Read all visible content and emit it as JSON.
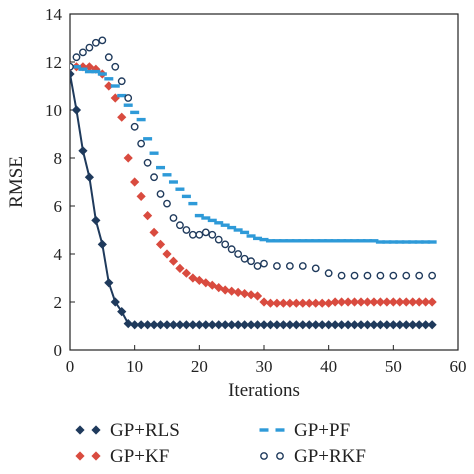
{
  "chart_data": {
    "type": "line",
    "xlabel": "Iterations",
    "ylabel": "RMSE",
    "xlim": [
      0,
      60
    ],
    "ylim": [
      0,
      14
    ],
    "xticks": [
      0,
      10,
      20,
      30,
      40,
      50,
      60
    ],
    "yticks": [
      0,
      2,
      4,
      6,
      8,
      10,
      12,
      14
    ],
    "grid": false,
    "legend_position": "bottom",
    "series": [
      {
        "name": "GP+RLS",
        "color": "#1f3a5c",
        "marker": "diamond-filled",
        "x": [
          0,
          1,
          2,
          3,
          4,
          5,
          6,
          7,
          8,
          9,
          10,
          11,
          12,
          13,
          14,
          15,
          16,
          17,
          18,
          19,
          20,
          21,
          22,
          23,
          24,
          25,
          26,
          27,
          28,
          29,
          30,
          31,
          32,
          33,
          34,
          35,
          36,
          37,
          38,
          39,
          40,
          41,
          42,
          43,
          44,
          45,
          46,
          47,
          48,
          49,
          50,
          51,
          52,
          53,
          54,
          55,
          56
        ],
        "values": [
          11.5,
          10,
          8.3,
          7.2,
          5.4,
          4.4,
          2.8,
          2.0,
          1.6,
          1.1,
          1.05,
          1.05,
          1.05,
          1.05,
          1.05,
          1.05,
          1.05,
          1.05,
          1.05,
          1.05,
          1.05,
          1.05,
          1.05,
          1.05,
          1.05,
          1.05,
          1.05,
          1.05,
          1.05,
          1.05,
          1.05,
          1.05,
          1.05,
          1.05,
          1.05,
          1.05,
          1.05,
          1.05,
          1.05,
          1.05,
          1.05,
          1.05,
          1.05,
          1.05,
          1.05,
          1.05,
          1.05,
          1.05,
          1.05,
          1.05,
          1.05,
          1.05,
          1.05,
          1.05,
          1.05,
          1.05,
          1.05
        ]
      },
      {
        "name": "GP+KF",
        "color": "#d94b3f",
        "marker": "diamond-filled",
        "x": [
          0,
          1,
          2,
          3,
          4,
          5,
          6,
          7,
          8,
          9,
          10,
          11,
          12,
          13,
          14,
          15,
          16,
          17,
          18,
          19,
          20,
          21,
          22,
          23,
          24,
          25,
          26,
          27,
          28,
          29,
          30,
          31,
          32,
          33,
          34,
          35,
          36,
          37,
          38,
          39,
          40,
          41,
          42,
          43,
          44,
          45,
          46,
          47,
          48,
          49,
          50,
          51,
          52,
          53,
          54,
          55,
          56
        ],
        "values": [
          11.8,
          11.8,
          11.8,
          11.8,
          11.7,
          11.5,
          11.0,
          10.5,
          9.7,
          8.0,
          7.0,
          6.4,
          5.6,
          4.9,
          4.4,
          4.0,
          3.7,
          3.4,
          3.2,
          3.0,
          2.9,
          2.8,
          2.7,
          2.6,
          2.5,
          2.45,
          2.4,
          2.35,
          2.3,
          2.25,
          2.0,
          1.95,
          1.95,
          1.95,
          1.95,
          1.95,
          1.95,
          1.95,
          1.95,
          1.95,
          1.95,
          2.0,
          2.0,
          2.0,
          2.0,
          2.0,
          2.0,
          2.0,
          2.0,
          2.0,
          2.0,
          2.0,
          2.0,
          2.0,
          2.0,
          2.0,
          2.0
        ]
      },
      {
        "name": "GP+PF",
        "color": "#2e9ad8",
        "marker": "dash",
        "x": [
          0,
          1,
          2,
          3,
          4,
          5,
          6,
          7,
          8,
          9,
          10,
          11,
          12,
          13,
          14,
          15,
          16,
          17,
          18,
          19,
          20,
          21,
          22,
          23,
          24,
          25,
          26,
          27,
          28,
          29,
          30,
          31,
          32,
          33,
          34,
          35,
          36,
          37,
          38,
          39,
          40,
          41,
          42,
          43,
          44,
          45,
          46,
          47,
          48,
          49,
          50,
          51,
          52,
          53,
          54,
          55,
          56
        ],
        "values": [
          11.8,
          11.8,
          11.7,
          11.6,
          11.6,
          11.5,
          11.3,
          11.0,
          10.6,
          10.2,
          9.9,
          9.6,
          8.8,
          8.2,
          7.6,
          7.3,
          7.0,
          6.7,
          6.4,
          6.1,
          5.6,
          5.5,
          5.4,
          5.3,
          5.2,
          5.1,
          5.0,
          4.9,
          4.75,
          4.65,
          4.6,
          4.55,
          4.55,
          4.55,
          4.55,
          4.55,
          4.55,
          4.55,
          4.55,
          4.55,
          4.55,
          4.55,
          4.55,
          4.55,
          4.55,
          4.55,
          4.55,
          4.55,
          4.5,
          4.5,
          4.5,
          4.5,
          4.5,
          4.5,
          4.5,
          4.5,
          4.5
        ]
      },
      {
        "name": "GP+RKF",
        "color": "#1f3a5c",
        "marker": "circle-open",
        "x": [
          0,
          1,
          2,
          3,
          4,
          5,
          6,
          7,
          8,
          9,
          10,
          11,
          12,
          13,
          14,
          15,
          16,
          17,
          18,
          19,
          20,
          21,
          22,
          23,
          24,
          25,
          26,
          27,
          28,
          29,
          30,
          32,
          34,
          36,
          38,
          40,
          42,
          44,
          46,
          48,
          50,
          52,
          54,
          56
        ],
        "values": [
          11.8,
          12.2,
          12.4,
          12.6,
          12.8,
          12.9,
          12.2,
          11.8,
          11.2,
          10.5,
          9.3,
          8.6,
          7.8,
          7.2,
          6.5,
          6.1,
          5.5,
          5.2,
          5.0,
          4.8,
          4.8,
          4.9,
          4.8,
          4.6,
          4.4,
          4.2,
          4.0,
          3.8,
          3.7,
          3.5,
          3.6,
          3.5,
          3.5,
          3.5,
          3.4,
          3.2,
          3.1,
          3.1,
          3.1,
          3.1,
          3.1,
          3.1,
          3.1,
          3.1
        ]
      }
    ]
  }
}
